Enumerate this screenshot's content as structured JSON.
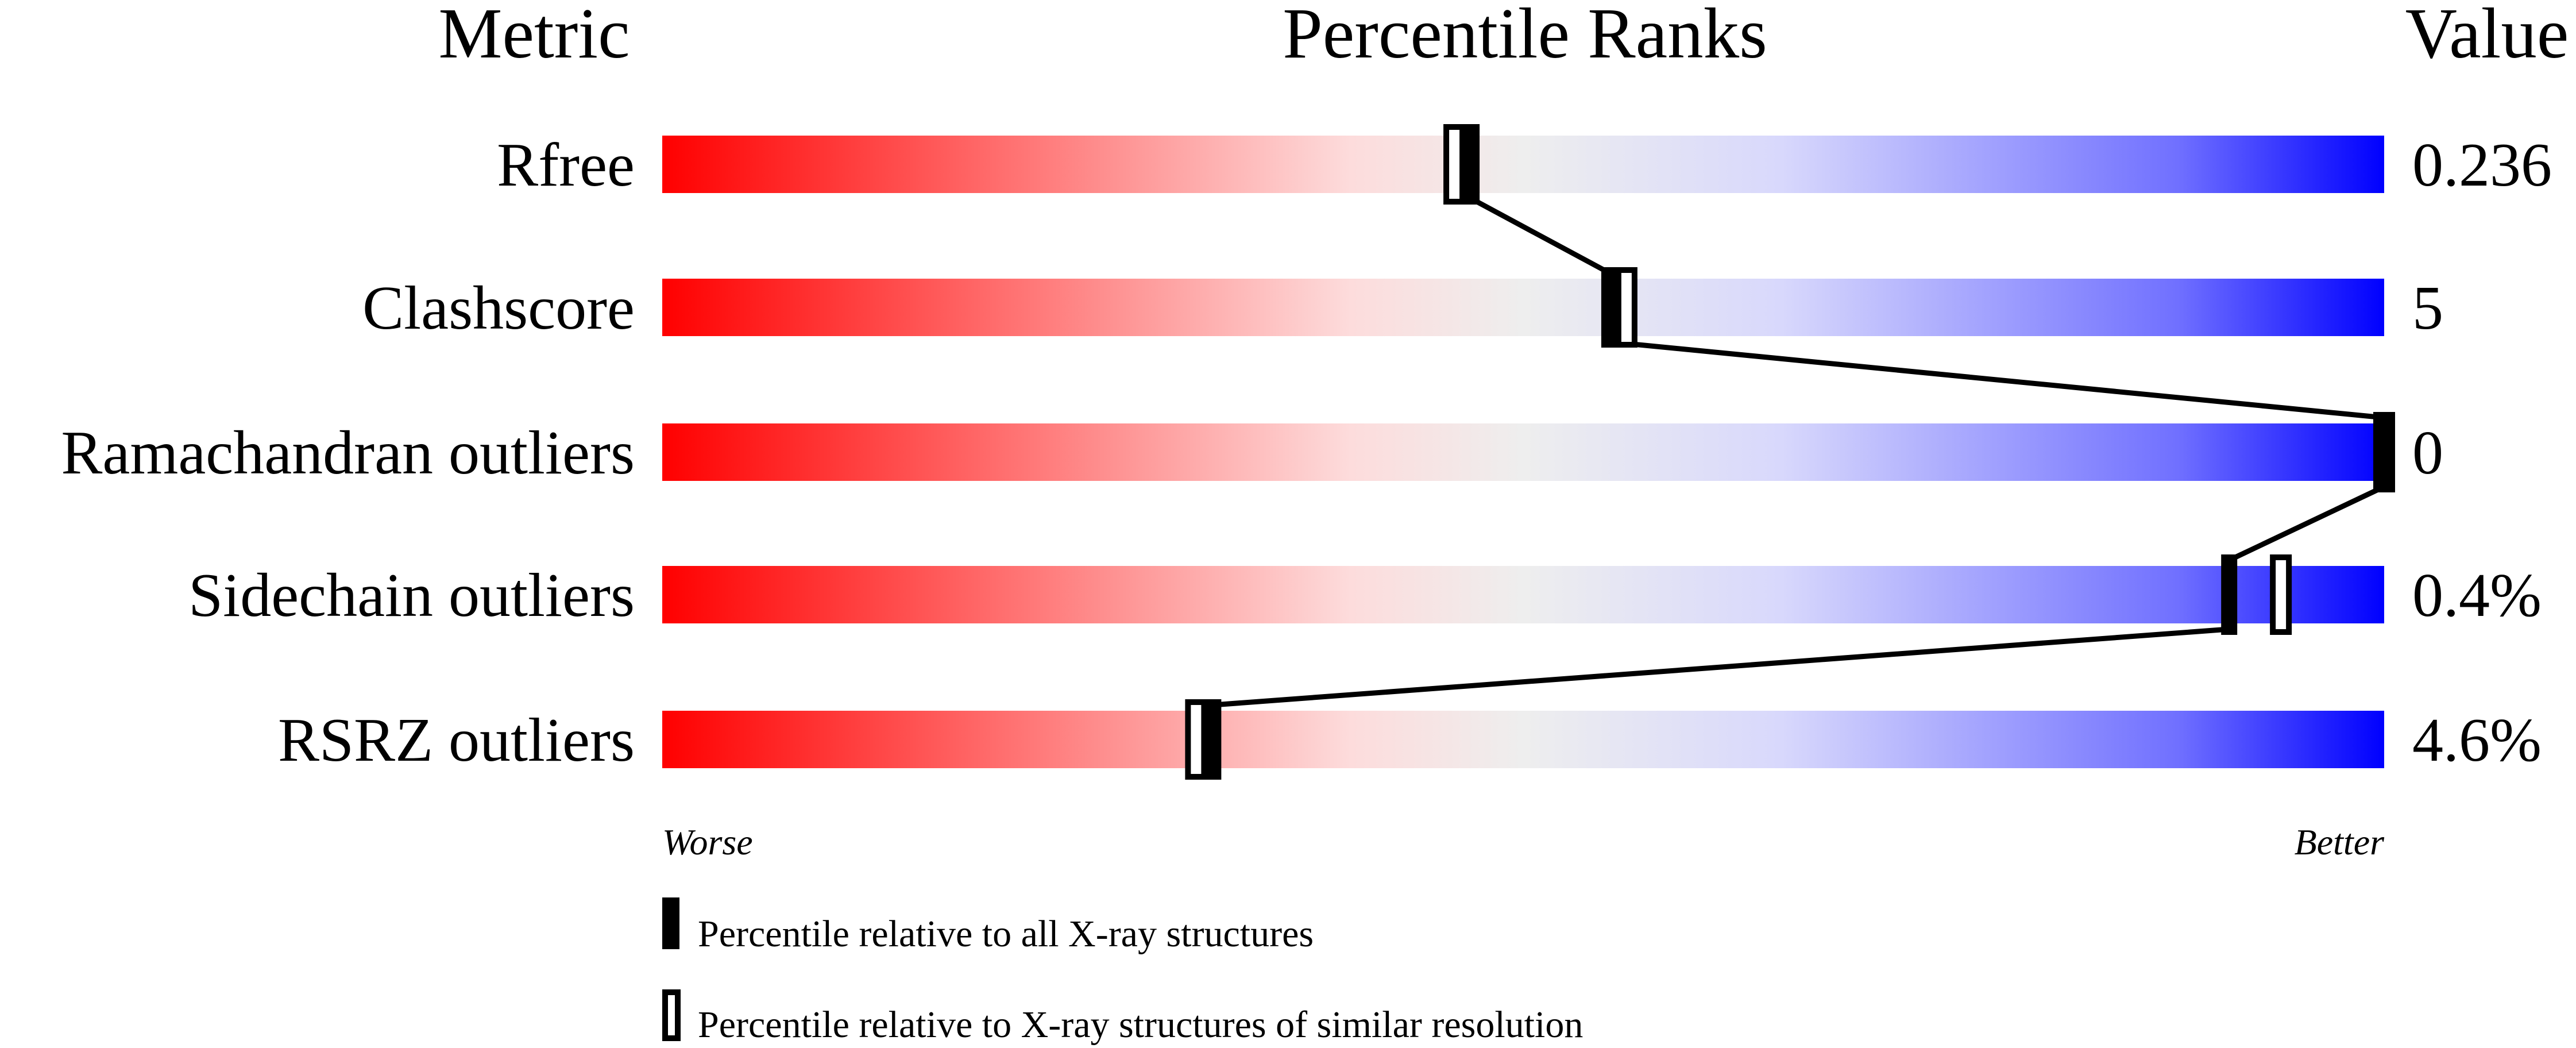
{
  "chart_data": {
    "type": "percentile-bar",
    "headers": {
      "metric": "Metric",
      "ranks": "Percentile Ranks",
      "value": "Value"
    },
    "xlim": [
      0,
      100
    ],
    "axis_labels": {
      "left": "Worse",
      "right": "Better"
    },
    "gradient_colors": [
      "#ff0000",
      "#ff7070",
      "#fddcdc",
      "#eeeeee",
      "#d8d8fc",
      "#7070ff",
      "#0000ff"
    ],
    "metrics": [
      {
        "name": "Rfree",
        "value": "0.236",
        "percentile_all": 47,
        "percentile_similar": 46
      },
      {
        "name": "Clashscore",
        "value": "5",
        "percentile_all": 55,
        "percentile_similar": 56
      },
      {
        "name": "Ramachandran outliers",
        "value": "0",
        "percentile_all": 100,
        "percentile_similar": 100
      },
      {
        "name": "Sidechain outliers",
        "value": "0.4%",
        "percentile_all": 91,
        "percentile_similar": 94
      },
      {
        "name": "RSRZ outliers",
        "value": "4.6%",
        "percentile_all": 32,
        "percentile_similar": 31
      }
    ],
    "legend": [
      {
        "marker": "filled",
        "label": "Percentile relative to all X-ray structures"
      },
      {
        "marker": "hollow",
        "label": "Percentile relative to X-ray structures of similar resolution"
      }
    ]
  }
}
